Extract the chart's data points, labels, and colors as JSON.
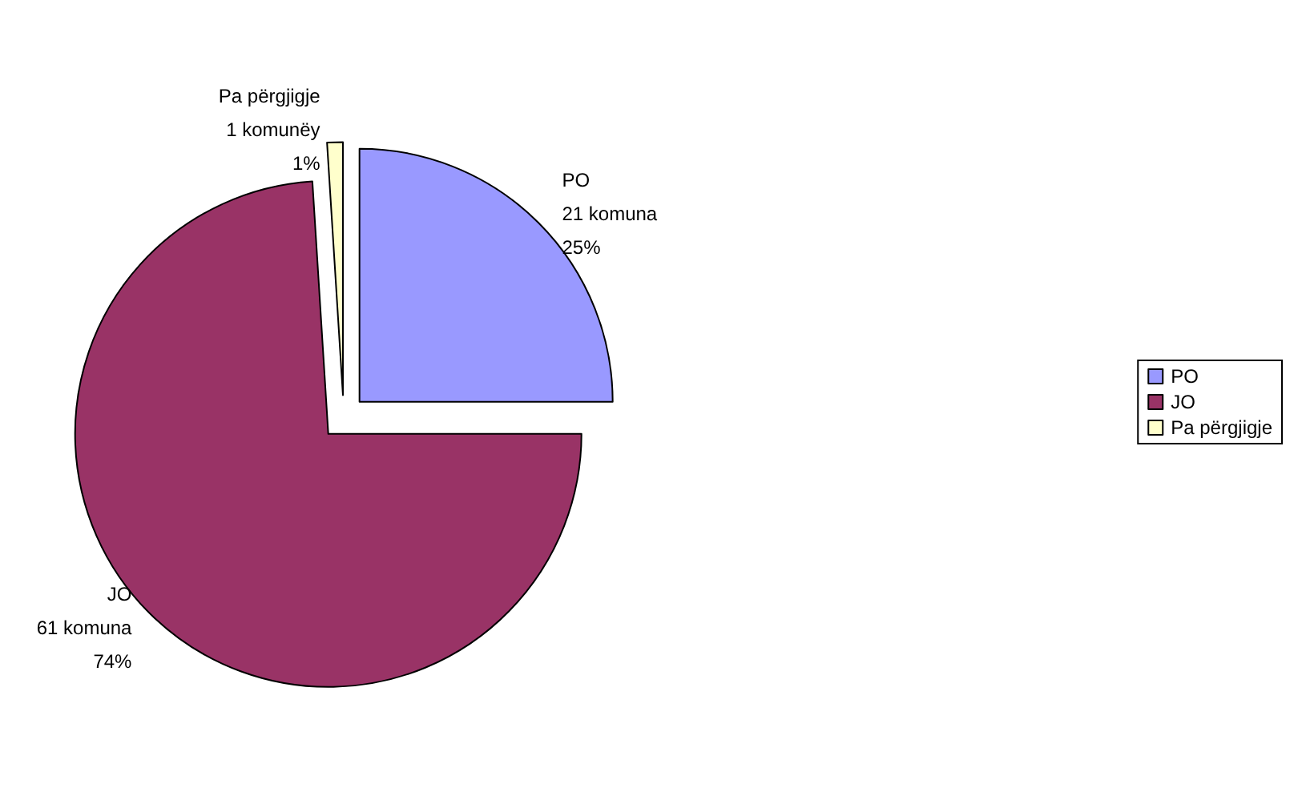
{
  "chart_data": {
    "type": "pie",
    "categories": [
      "PO",
      "JO",
      "Pa përgjigje"
    ],
    "values": [
      25,
      74,
      1
    ],
    "colors": [
      "#9999ff",
      "#993366",
      "#ffffcc"
    ],
    "value_labels": [
      "21 komuna\n25%",
      "61 komuna\n74%",
      "1 komunëy\n1%"
    ],
    "legend": "right"
  }
}
